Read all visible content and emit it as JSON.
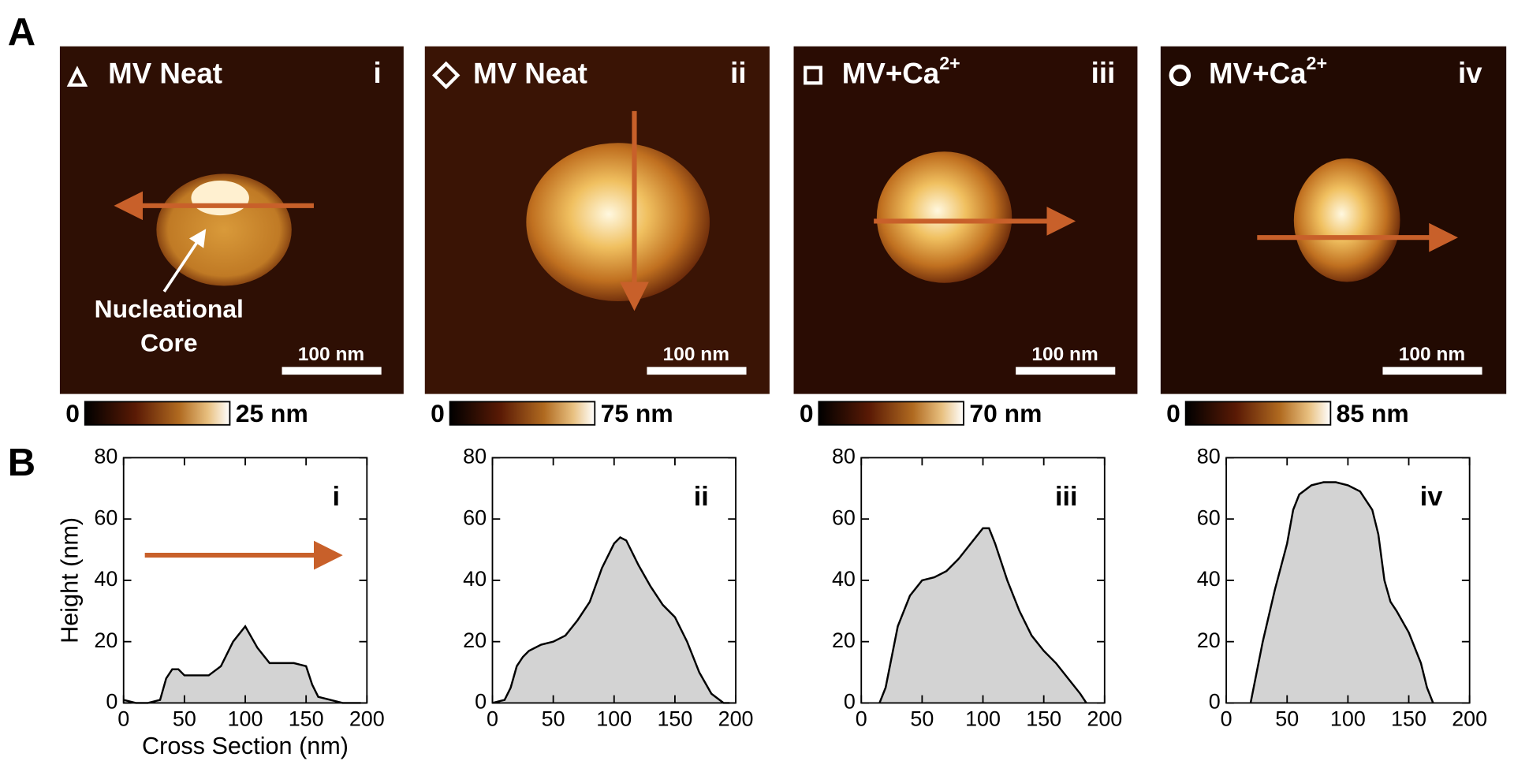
{
  "figure": {
    "panel_a": "A",
    "panel_b": "B",
    "annotation": [
      "Nucleational",
      "Core"
    ],
    "images": [
      {
        "title": "MV Neat",
        "title_sup": null,
        "numeral": "i",
        "scale_bar": "100 nm",
        "cbar_min": "0",
        "cbar_max": "25 nm"
      },
      {
        "title": "MV Neat",
        "title_sup": null,
        "numeral": "ii",
        "scale_bar": "100 nm",
        "cbar_min": "0",
        "cbar_max": "75 nm"
      },
      {
        "title": "MV+Ca",
        "title_sup": "2+",
        "numeral": "iii",
        "scale_bar": "100 nm",
        "cbar_min": "0",
        "cbar_max": "70 nm"
      },
      {
        "title": "MV+Ca",
        "title_sup": "2+",
        "numeral": "iv",
        "scale_bar": "100 nm",
        "cbar_min": "0",
        "cbar_max": "85 nm"
      }
    ]
  },
  "chart_data": [
    {
      "type": "area",
      "label": "i",
      "xlabel": "Cross Section (nm)",
      "ylabel": "Height (nm)",
      "fill": "#d3d3d3",
      "color": "#000000",
      "x": [
        0,
        10,
        20,
        30,
        35,
        40,
        45,
        50,
        60,
        70,
        80,
        90,
        100,
        110,
        120,
        130,
        140,
        150,
        155,
        160,
        170,
        180,
        190,
        195
      ],
      "values": [
        1,
        0,
        0,
        1,
        8,
        11,
        11,
        9,
        9,
        9,
        12,
        20,
        25,
        18,
        13,
        13,
        13,
        12,
        6,
        2,
        1,
        0,
        0,
        0
      ],
      "xlim": [
        0,
        200
      ],
      "ylim": [
        0,
        80
      ],
      "xticks": [
        0,
        50,
        100,
        150,
        200
      ],
      "yticks": [
        0,
        20,
        40,
        60,
        80
      ]
    },
    {
      "type": "area",
      "label": "ii",
      "fill": "#d3d3d3",
      "color": "#000000",
      "x": [
        0,
        10,
        15,
        20,
        25,
        30,
        40,
        50,
        60,
        70,
        80,
        90,
        100,
        105,
        110,
        120,
        130,
        140,
        150,
        160,
        170,
        180,
        190,
        195
      ],
      "values": [
        0,
        1,
        5,
        12,
        15,
        17,
        19,
        20,
        22,
        27,
        33,
        44,
        52,
        54,
        53,
        45,
        38,
        32,
        28,
        20,
        10,
        3,
        0,
        0
      ],
      "xlim": [
        0,
        200
      ],
      "ylim": [
        0,
        80
      ],
      "xticks": [
        0,
        50,
        100,
        150,
        200
      ],
      "yticks": [
        0,
        20,
        40,
        60,
        80
      ]
    },
    {
      "type": "area",
      "label": "iii",
      "fill": "#d3d3d3",
      "color": "#000000",
      "x": [
        15,
        20,
        25,
        30,
        40,
        50,
        60,
        70,
        80,
        90,
        100,
        105,
        110,
        120,
        130,
        140,
        150,
        160,
        170,
        180,
        185
      ],
      "values": [
        0,
        5,
        15,
        25,
        35,
        40,
        41,
        43,
        47,
        52,
        57,
        57,
        52,
        40,
        30,
        22,
        17,
        13,
        8,
        3,
        0
      ],
      "xlim": [
        0,
        200
      ],
      "ylim": [
        0,
        80
      ],
      "xticks": [
        0,
        50,
        100,
        150,
        200
      ],
      "yticks": [
        0,
        20,
        40,
        60,
        80
      ]
    },
    {
      "type": "area",
      "label": "iv",
      "fill": "#d3d3d3",
      "color": "#000000",
      "x": [
        20,
        25,
        30,
        40,
        50,
        55,
        60,
        70,
        80,
        90,
        100,
        110,
        120,
        125,
        130,
        135,
        140,
        150,
        160,
        165,
        170
      ],
      "values": [
        0,
        10,
        20,
        37,
        52,
        63,
        68,
        71,
        72,
        72,
        71,
        69,
        63,
        55,
        40,
        33,
        30,
        23,
        13,
        5,
        0
      ],
      "xlim": [
        0,
        200
      ],
      "ylim": [
        0,
        80
      ],
      "xticks": [
        0,
        50,
        100,
        150,
        200
      ],
      "yticks": [
        0,
        20,
        40,
        60,
        80
      ]
    }
  ]
}
